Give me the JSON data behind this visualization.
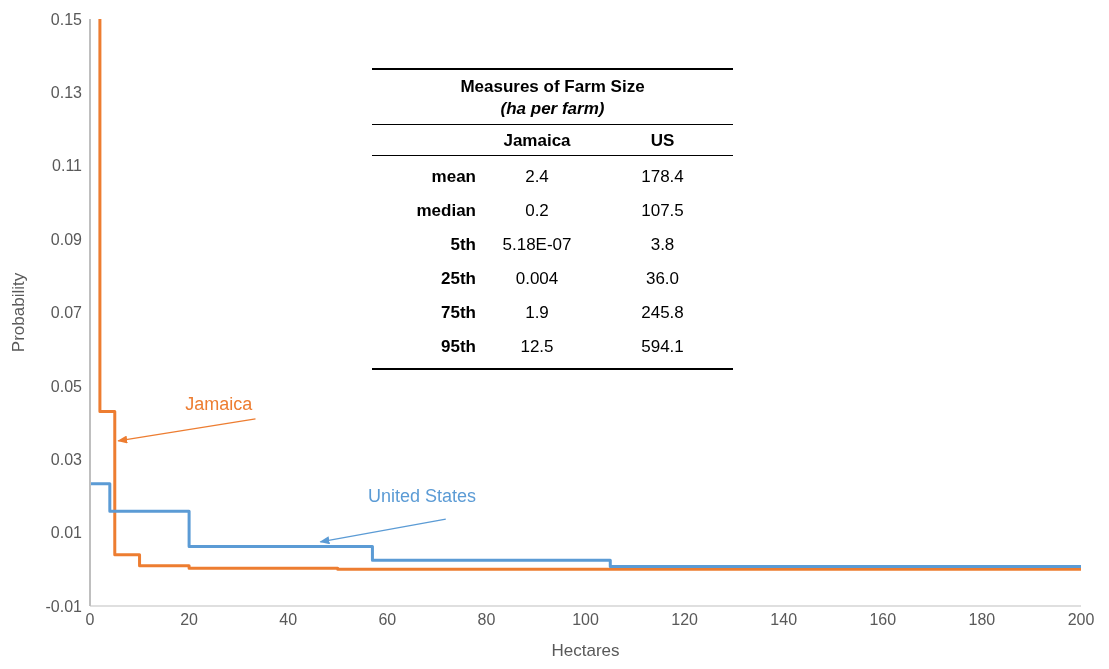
{
  "chart_data": {
    "type": "step",
    "xlabel": "Hectares",
    "ylabel": "Probability",
    "xlim": [
      0,
      200
    ],
    "xticks": [
      0,
      20,
      40,
      60,
      80,
      100,
      120,
      140,
      160,
      180,
      200
    ],
    "ylim": [
      -0.01,
      0.15
    ],
    "yticks": [
      -0.01,
      0.01,
      0.03,
      0.05,
      0.07,
      0.09,
      0.11,
      0.13,
      0.15
    ],
    "grid": false,
    "legend": false,
    "marker": "none",
    "line_style": "solid",
    "series": [
      {
        "name": "Jamaica",
        "color": "#ed7d31",
        "x": [
          2,
          2,
          5,
          10,
          20,
          50,
          200
        ],
        "values": [
          0.15,
          0.043,
          0.004,
          0.001,
          0.0003,
          0,
          0
        ]
      },
      {
        "name": "United States",
        "color": "#5b9bd5",
        "x": [
          0,
          4,
          20,
          57,
          105,
          200
        ],
        "values": [
          0.0233,
          0.0158,
          0.0062,
          0.0025,
          0.0008,
          0.0008
        ]
      }
    ],
    "annotations": [
      "Measures of Farm Size",
      "(ha per farm)",
      "Jamaica",
      "US",
      "mean",
      "2.4",
      "178.4",
      "median",
      "0.2",
      "107.5",
      "5th",
      "5.18E-07",
      "3.8",
      "25th",
      "0.004",
      "36.0",
      "75th",
      "1.9",
      "245.8",
      "95th",
      "12.5",
      "594.1"
    ]
  }
}
